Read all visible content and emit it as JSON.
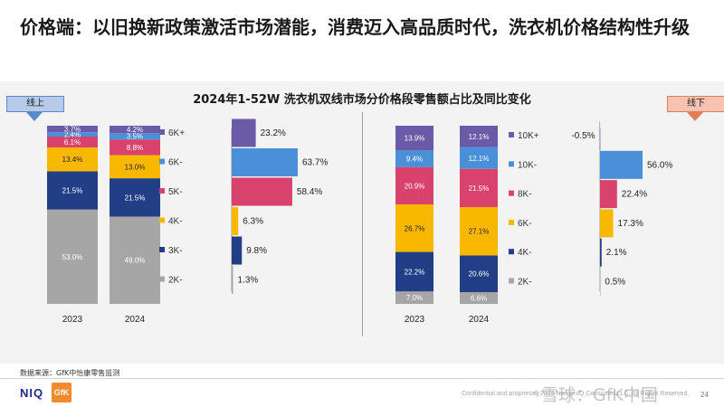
{
  "page_title": "价格端：以旧换新政策激活市场潜能，消费迈入高品质时代，洗衣机价格结构性升级",
  "chart_title": "2024年1-52W 洗衣机双线市场分价格段零售额占比及同比变化",
  "source_note": "数据来源：GfK中怡康零售监测",
  "footer": {
    "confidential": "Confidential and proprietary",
    "copyright": "© 2025 NielsenIQ Consumer LLC. All Rights Reserved.",
    "page_number": "24",
    "watermark": "雪球：GfK中国",
    "logo_niq": "NIQ",
    "logo_gfk": "GfK"
  },
  "colors": {
    "accent_online": "#5b8ac9",
    "accent_offline": "#e37c58",
    "growth_bar": "#4a90d9"
  },
  "chart_data": [
    {
      "type": "bar",
      "channel": "线上",
      "stacked": true,
      "unit": "%",
      "categories": [
        "2023",
        "2024"
      ],
      "series": [
        {
          "name": "2K-",
          "color": "#a6a6a6",
          "values": [
            53.0,
            49.0
          ],
          "labels": [
            "53.0%",
            "49.0%"
          ]
        },
        {
          "name": "3K-",
          "color": "#223f86",
          "values": [
            21.5,
            21.5
          ],
          "labels": [
            "21.5%",
            "21.5%"
          ]
        },
        {
          "name": "4K-",
          "color": "#f9b800",
          "values": [
            13.4,
            13.0
          ],
          "labels": [
            "13.4%",
            "13.0%"
          ]
        },
        {
          "name": "5K-",
          "color": "#d9426d",
          "values": [
            6.1,
            8.8
          ],
          "labels": [
            "6.1%",
            "8.8%"
          ]
        },
        {
          "name": "6K-",
          "color": "#4a90d9",
          "values": [
            2.4,
            3.5
          ],
          "labels": [
            "2.4%",
            "3.5%"
          ]
        },
        {
          "name": "6K+",
          "color": "#6a5aa8",
          "values": [
            3.7,
            4.2
          ],
          "labels": [
            "3.7%",
            "4.2%"
          ]
        }
      ],
      "legend": [
        "6K+",
        "6K-",
        "5K-",
        "4K-",
        "3K-",
        "2K-"
      ],
      "yoy_change": [
        {
          "segment": "6K+",
          "value": 23.2,
          "label": "23.2%"
        },
        {
          "segment": "6K-",
          "value": 63.7,
          "label": "63.7%"
        },
        {
          "segment": "5K-",
          "value": 58.4,
          "label": "58.4%"
        },
        {
          "segment": "4K-",
          "value": 6.3,
          "label": "6.3%"
        },
        {
          "segment": "3K-",
          "value": 9.8,
          "label": "9.8%"
        },
        {
          "segment": "2K-",
          "value": 1.3,
          "label": "1.3%"
        }
      ]
    },
    {
      "type": "bar",
      "channel": "线下",
      "stacked": true,
      "unit": "%",
      "categories": [
        "2023",
        "2024"
      ],
      "series": [
        {
          "name": "2K-",
          "color": "#a6a6a6",
          "values": [
            7.0,
            6.6
          ],
          "labels": [
            "7.0%",
            "6.6%"
          ]
        },
        {
          "name": "4K-",
          "color": "#223f86",
          "values": [
            22.2,
            20.6
          ],
          "labels": [
            "22.2%",
            "20.6%"
          ]
        },
        {
          "name": "6K-",
          "color": "#f9b800",
          "values": [
            26.7,
            27.1
          ],
          "labels": [
            "26.7%",
            "27.1%"
          ]
        },
        {
          "name": "8K-",
          "color": "#d9426d",
          "values": [
            20.9,
            21.5
          ],
          "labels": [
            "20.9%",
            "21.5%"
          ]
        },
        {
          "name": "10K-",
          "color": "#4a90d9",
          "values": [
            9.4,
            12.1
          ],
          "labels": [
            "9.4%",
            "12.1%"
          ]
        },
        {
          "name": "10K+",
          "color": "#6a5aa8",
          "values": [
            13.9,
            12.1
          ],
          "labels": [
            "13.9%",
            "12.1%"
          ]
        }
      ],
      "legend": [
        "10K+",
        "10K-",
        "8K-",
        "6K-",
        "4K-",
        "2K-"
      ],
      "yoy_change": [
        {
          "segment": "10K+",
          "value": -0.5,
          "label": "-0.5%"
        },
        {
          "segment": "10K-",
          "value": 56.0,
          "label": "56.0%"
        },
        {
          "segment": "8K-",
          "value": 22.4,
          "label": "22.4%"
        },
        {
          "segment": "6K-",
          "value": 17.3,
          "label": "17.3%"
        },
        {
          "segment": "4K-",
          "value": 2.1,
          "label": "2.1%"
        },
        {
          "segment": "2K-",
          "value": 0.5,
          "label": "0.5%"
        }
      ]
    }
  ]
}
